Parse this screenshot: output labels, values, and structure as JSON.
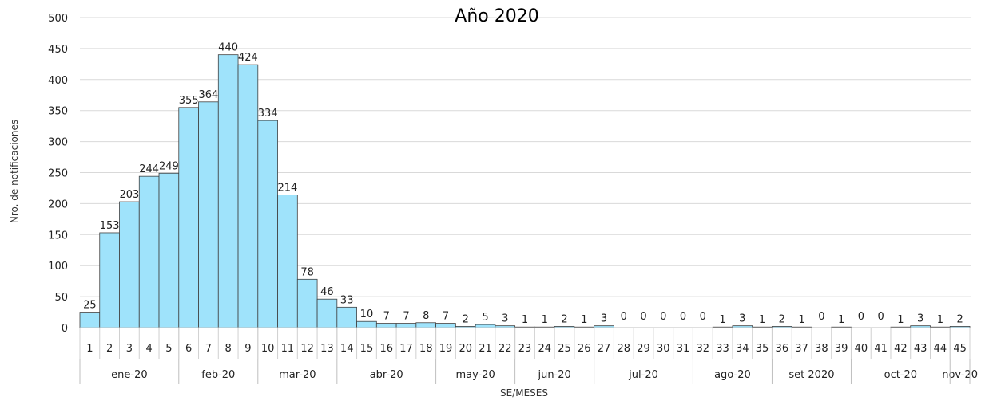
{
  "chart_data": {
    "type": "bar",
    "title": "Año 2020",
    "xlabel": "SE/MESES",
    "ylabel": "Nro. de notificaciones",
    "ylim": [
      0,
      500
    ],
    "yticks": [
      0,
      50,
      100,
      150,
      200,
      250,
      300,
      350,
      400,
      450,
      500
    ],
    "grid": true,
    "bar_color": "#9fe3fb",
    "bar_edge_color": "#404040",
    "categories": [
      "1",
      "2",
      "3",
      "4",
      "5",
      "6",
      "7",
      "8",
      "9",
      "10",
      "11",
      "12",
      "13",
      "14",
      "15",
      "16",
      "17",
      "18",
      "19",
      "20",
      "21",
      "22",
      "23",
      "24",
      "25",
      "26",
      "27",
      "28",
      "29",
      "30",
      "31",
      "32",
      "33",
      "34",
      "35",
      "36",
      "37",
      "38",
      "39",
      "40",
      "41",
      "42",
      "43",
      "44",
      "45"
    ],
    "values": [
      25,
      153,
      203,
      244,
      249,
      355,
      364,
      440,
      424,
      334,
      214,
      78,
      46,
      33,
      10,
      7,
      7,
      8,
      7,
      2,
      5,
      3,
      1,
      1,
      2,
      1,
      3,
      0,
      0,
      0,
      0,
      0,
      1,
      3,
      1,
      2,
      1,
      0,
      1,
      0,
      0,
      1,
      3,
      1,
      2
    ],
    "months": [
      {
        "label": "ene-20",
        "weeks": [
          1,
          5
        ]
      },
      {
        "label": "feb-20",
        "weeks": [
          6,
          9
        ]
      },
      {
        "label": "mar-20",
        "weeks": [
          10,
          13
        ]
      },
      {
        "label": "abr-20",
        "weeks": [
          14,
          18
        ]
      },
      {
        "label": "may-20",
        "weeks": [
          19,
          22
        ]
      },
      {
        "label": "jun-20",
        "weeks": [
          23,
          26
        ]
      },
      {
        "label": "jul-20",
        "weeks": [
          27,
          31
        ]
      },
      {
        "label": "ago-20",
        "weeks": [
          32,
          35
        ]
      },
      {
        "label": "set 2020",
        "weeks": [
          36,
          39
        ]
      },
      {
        "label": "oct-20",
        "weeks": [
          40,
          44
        ]
      },
      {
        "label": "nov-20",
        "weeks": [
          45,
          45
        ]
      }
    ]
  }
}
